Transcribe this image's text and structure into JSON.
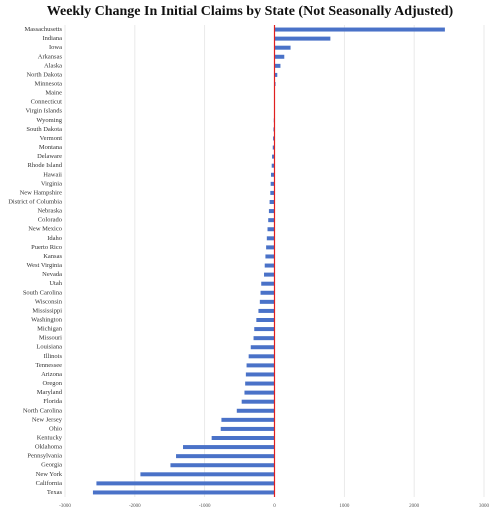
{
  "chart_data": {
    "type": "barh",
    "title": "Weekly Change In Initial Claims by State (Not Seasonally Adjusted)",
    "categories": [
      "Massachusetts",
      "Indiana",
      "Iowa",
      "Arkansas",
      "Alaska",
      "North Dakota",
      "Minnesota",
      "Maine",
      "Connecticut",
      "Virgin Islands",
      "Wyoming",
      "South Dakota",
      "Vermont",
      "Montana",
      "Delaware",
      "Rhode Island",
      "Hawaii",
      "Virginia",
      "New Hampshire",
      "District of Columbia",
      "Nebraska",
      "Colorado",
      "New Mexico",
      "Idaho",
      "Puerto Rico",
      "Kansas",
      "West Virginia",
      "Nevada",
      "Utah",
      "South Carolina",
      "Wisconsin",
      "Mississippi",
      "Washington",
      "Michigan",
      "Missouri",
      "Louisiana",
      "Illinois",
      "Tennessee",
      "Arizona",
      "Oregon",
      "Maryland",
      "Florida",
      "North Carolina",
      "New Jersey",
      "Ohio",
      "Kentucky",
      "Oklahoma",
      "Pennsylvania",
      "Georgia",
      "New York",
      "California",
      "Texas"
    ],
    "values": [
      2440,
      800,
      230,
      140,
      85,
      40,
      15,
      5,
      0,
      -5,
      -10,
      -15,
      -20,
      -25,
      -35,
      -40,
      -50,
      -55,
      -60,
      -70,
      -80,
      -90,
      -100,
      -110,
      -120,
      -130,
      -140,
      -150,
      -190,
      -200,
      -210,
      -230,
      -260,
      -290,
      -300,
      -340,
      -370,
      -400,
      -410,
      -420,
      -430,
      -470,
      -540,
      -760,
      -770,
      -900,
      -1310,
      -1410,
      -1490,
      -1920,
      -2550,
      -2600
    ],
    "color": "#4a72c8",
    "zero_line_color": "#e02020",
    "xlim": [
      -3000,
      3000
    ],
    "xticks": [
      -3000,
      -2000,
      -1000,
      0,
      1000,
      2000,
      3000
    ],
    "grid": true
  }
}
